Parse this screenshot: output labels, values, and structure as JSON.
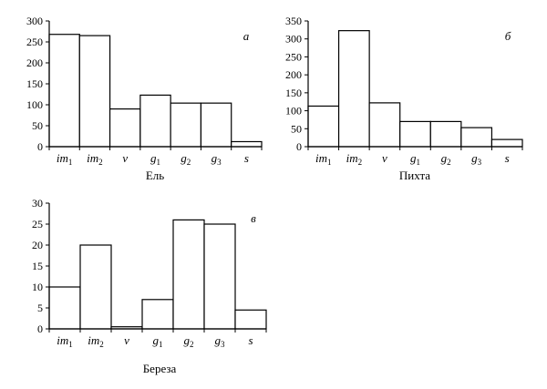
{
  "chart_data": [
    {
      "type": "bar",
      "panel_letter": "а",
      "title": "Ель",
      "categories": [
        {
          "base": "im",
          "sub": "1"
        },
        {
          "base": "im",
          "sub": "2"
        },
        {
          "base": "v",
          "sub": ""
        },
        {
          "base": "g",
          "sub": "1"
        },
        {
          "base": "g",
          "sub": "2"
        },
        {
          "base": "g",
          "sub": "3"
        },
        {
          "base": "s",
          "sub": ""
        }
      ],
      "values": [
        268,
        265,
        90,
        123,
        104,
        104,
        12
      ],
      "ylim": [
        0,
        300
      ],
      "yticks": [
        0,
        50,
        100,
        150,
        200,
        250,
        300
      ],
      "ytick_labels": [
        "0",
        "50",
        "100",
        "150",
        "200",
        "250",
        "300"
      ],
      "grid": false
    },
    {
      "type": "bar",
      "panel_letter": "б",
      "title": "Пихта",
      "categories": [
        {
          "base": "im",
          "sub": "1"
        },
        {
          "base": "im",
          "sub": "2"
        },
        {
          "base": "v",
          "sub": ""
        },
        {
          "base": "g",
          "sub": "1"
        },
        {
          "base": "g",
          "sub": "2"
        },
        {
          "base": "g",
          "sub": "3"
        },
        {
          "base": "s",
          "sub": ""
        }
      ],
      "values": [
        113,
        323,
        122,
        70,
        70,
        53,
        20
      ],
      "ylim": [
        0,
        350
      ],
      "yticks": [
        0,
        50,
        100,
        150,
        200,
        250,
        300,
        350
      ],
      "ytick_labels": [
        "0",
        "50",
        "100",
        "150",
        "200",
        "250",
        "300",
        "350"
      ],
      "grid": false
    },
    {
      "type": "bar",
      "panel_letter": "в",
      "title": "Береза",
      "categories": [
        {
          "base": "im",
          "sub": "1"
        },
        {
          "base": "im",
          "sub": "2"
        },
        {
          "base": "v",
          "sub": ""
        },
        {
          "base": "g",
          "sub": "1"
        },
        {
          "base": "g",
          "sub": "2"
        },
        {
          "base": "g",
          "sub": "3"
        },
        {
          "base": "s",
          "sub": ""
        }
      ],
      "values": [
        10,
        20,
        0.5,
        7,
        26,
        25,
        4.5
      ],
      "ylim": [
        0,
        30
      ],
      "yticks": [
        0,
        5,
        10,
        15,
        20,
        25,
        30
      ],
      "ytick_labels": [
        "0",
        "5",
        "10",
        "15",
        "20",
        "25",
        "30"
      ],
      "grid": false
    }
  ]
}
